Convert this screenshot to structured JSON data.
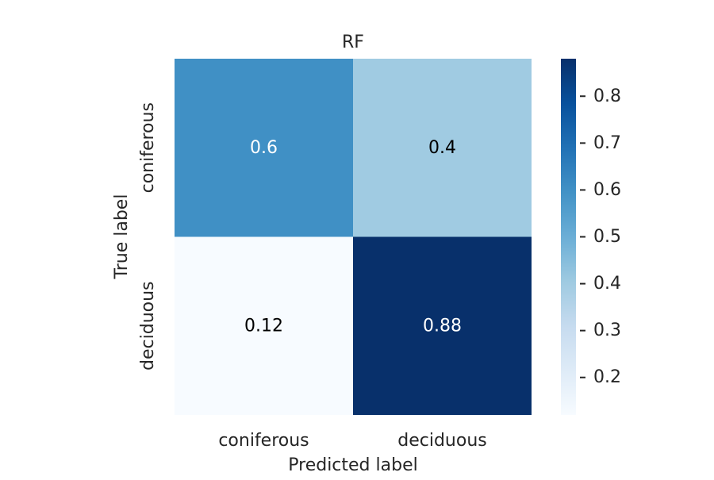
{
  "chart_data": {
    "type": "heatmap",
    "title": "RF",
    "xlabel": "Predicted label",
    "ylabel": "True label",
    "x_categories": [
      "coniferous",
      "deciduous"
    ],
    "y_categories": [
      "coniferous",
      "deciduous"
    ],
    "values": [
      [
        0.6,
        0.4
      ],
      [
        0.12,
        0.88
      ]
    ],
    "cell_labels": [
      [
        "0.6",
        "0.4"
      ],
      [
        "0.12",
        "0.88"
      ]
    ],
    "colormap": "Blues",
    "colorbar": {
      "range": [
        0.12,
        0.88
      ],
      "ticks": [
        0.2,
        0.3,
        0.4,
        0.5,
        0.6,
        0.7,
        0.8
      ],
      "tick_labels": [
        "0.2",
        "0.3",
        "0.4",
        "0.5",
        "0.6",
        "0.7",
        "0.8"
      ],
      "placement": "right"
    },
    "grid": false
  },
  "colors": {
    "background": "#ffffff",
    "text": "#262626",
    "annotation_dark": "#000000",
    "annotation_light": "#ffffff"
  }
}
